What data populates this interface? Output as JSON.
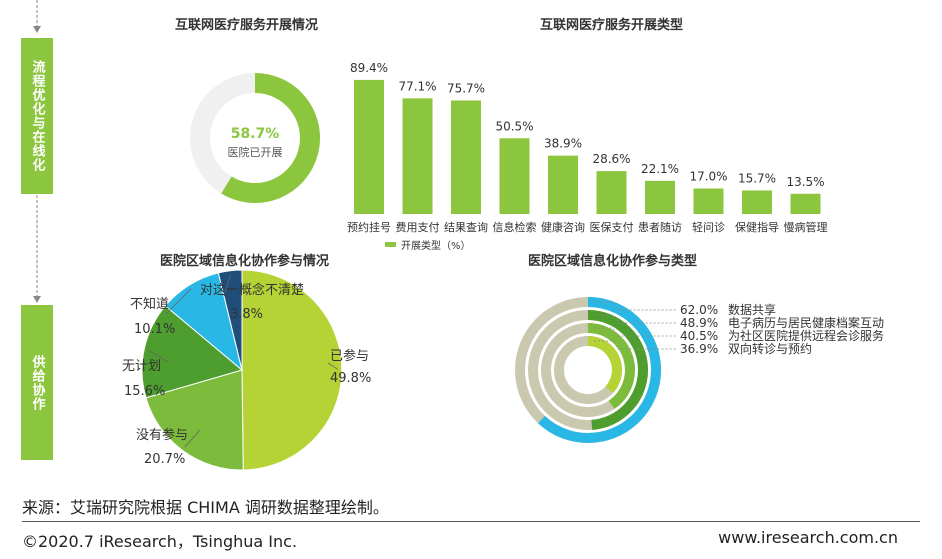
{
  "sidebar": {
    "step1": "流程优化与在线化",
    "step2": "供给协作"
  },
  "colors": {
    "green": "#8cc63f",
    "light_green": "#b5d334",
    "mid_green": "#7cbb3c",
    "dark_green": "#4d9e2e",
    "cyan": "#29b8e5",
    "navy": "#1f4e79",
    "track": "#f0f0f0",
    "ring_track": "#cbc8b0"
  },
  "chart_data": [
    {
      "type": "donut",
      "title": "互联网医疗服务开展情况",
      "value": 58.7,
      "value_label": "58.7%",
      "center_label": "医院已开展"
    },
    {
      "type": "bar",
      "title": "互联网医疗服务开展类型",
      "categories": [
        "预约挂号",
        "费用支付",
        "结果查询",
        "信息检索",
        "健康咨询",
        "医保支付",
        "患者随访",
        "轻问诊",
        "保健指导",
        "慢病管理"
      ],
      "values": [
        89.4,
        77.1,
        75.7,
        50.5,
        38.9,
        28.6,
        22.1,
        17.0,
        15.7,
        13.5
      ],
      "value_labels": [
        "89.4%",
        "77.1%",
        "75.7%",
        "50.5%",
        "38.9%",
        "28.6%",
        "22.1%",
        "17.0%",
        "15.7%",
        "13.5%"
      ],
      "legend": "开展类型（%）",
      "ylim": [
        0,
        100
      ]
    },
    {
      "type": "pie",
      "title": "医院区域信息化协作参与情况",
      "slices": [
        {
          "name": "已参与",
          "value": 49.8,
          "label": "49.8%"
        },
        {
          "name": "没有参与",
          "value": 20.7,
          "label": "20.7%"
        },
        {
          "name": "无计划",
          "value": 15.6,
          "label": "15.6%"
        },
        {
          "name": "不知道",
          "value": 10.1,
          "label": "10.1%"
        },
        {
          "name": "对这一概念不清楚",
          "value": 3.8,
          "label": "3.8%"
        }
      ]
    },
    {
      "type": "radial-bar",
      "title": "医院区域信息化协作参与类型",
      "items": [
        {
          "name": "数据共享",
          "value": 62.0,
          "label": "62.0%"
        },
        {
          "name": "电子病历与居民健康档案互动",
          "value": 48.9,
          "label": "48.9%"
        },
        {
          "name": "为社区医院提供远程会诊服务",
          "value": 40.5,
          "label": "40.5%"
        },
        {
          "name": "双向转诊与预约",
          "value": 36.9,
          "label": "36.9%"
        }
      ]
    }
  ],
  "footer": {
    "source": "来源：艾瑞研究院根据 CHIMA 调研数据整理绘制。",
    "copyright": "©2020.7 iResearch，Tsinghua Inc.",
    "website": "www.iresearch.com.cn"
  }
}
